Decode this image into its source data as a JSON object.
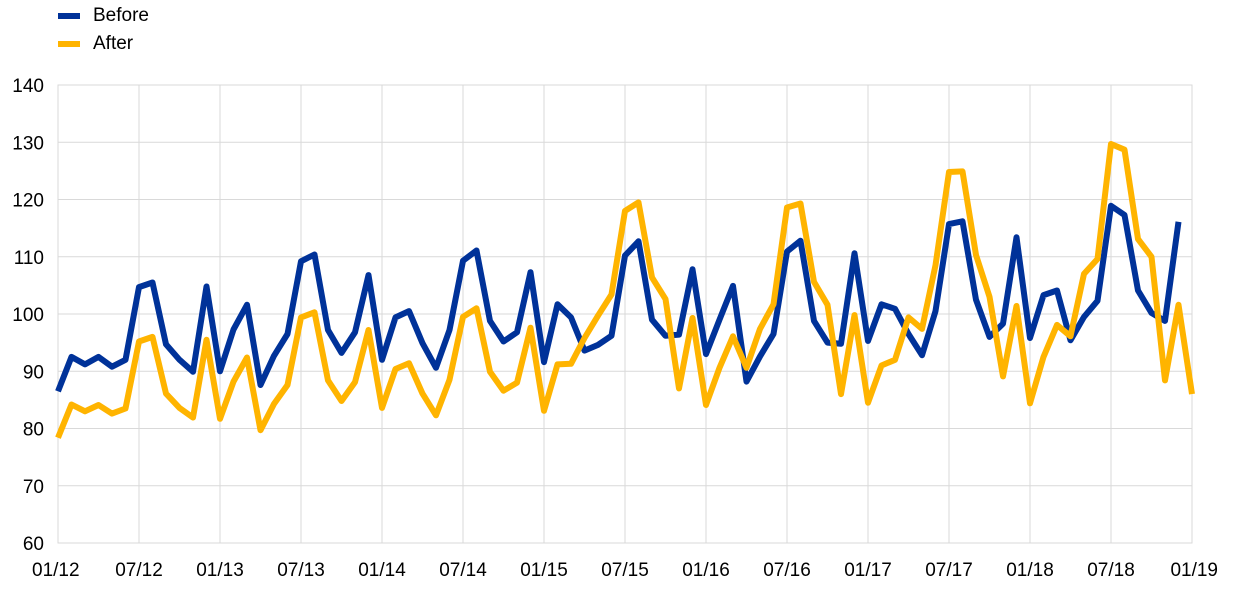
{
  "legend": [
    {
      "label": "Before",
      "color": "#003299"
    },
    {
      "label": "After",
      "color": "#FFB400"
    }
  ],
  "chart_data": {
    "type": "line",
    "title": "",
    "xlabel": "",
    "ylabel": "",
    "ylim": [
      60,
      140
    ],
    "yticks": [
      60,
      70,
      80,
      90,
      100,
      110,
      120,
      130,
      140
    ],
    "grid": true,
    "legend_position": "top-left",
    "x_tick_labels": [
      "01/12",
      "07/12",
      "01/13",
      "07/13",
      "01/14",
      "07/14",
      "01/15",
      "07/15",
      "01/16",
      "07/16",
      "01/17",
      "07/17",
      "01/18",
      "07/18",
      "01/19"
    ],
    "x_start": "01/12",
    "x_end": "01/19",
    "series": [
      {
        "name": "Before",
        "color": "#003299",
        "values": [
          86.5,
          92.5,
          91.2,
          92.5,
          90.8,
          92.0,
          104.7,
          105.5,
          94.7,
          92.0,
          89.9,
          104.8,
          90.0,
          97.3,
          101.6,
          87.6,
          92.7,
          96.5,
          109.2,
          110.4,
          97.2,
          93.2,
          96.8,
          106.8,
          92.0,
          99.4,
          100.5,
          94.9,
          90.6,
          97.2,
          109.3,
          111.1,
          98.8,
          95.2,
          96.8,
          107.3,
          91.6,
          101.7,
          99.4,
          93.6,
          94.6,
          96.2,
          110.2,
          112.7,
          99.0,
          96.2,
          96.4,
          107.8,
          93.0,
          99.0,
          104.9,
          88.2,
          92.6,
          96.5,
          110.9,
          112.8,
          98.8,
          95.0,
          94.8,
          110.6,
          95.3,
          101.7,
          100.9,
          96.5,
          92.8,
          100.5,
          115.7,
          116.2,
          102.5,
          96.0,
          98.3,
          113.4,
          95.8,
          103.3,
          104.1,
          95.4,
          99.5,
          102.3,
          118.9,
          117.3,
          104.1,
          100.2,
          98.8,
          116.1
        ]
      },
      {
        "name": "After",
        "color": "#FFB400",
        "values": [
          78.4,
          84.2,
          83.0,
          84.1,
          82.6,
          83.5,
          95.2,
          96.0,
          86.1,
          83.6,
          81.9,
          95.5,
          81.7,
          88.2,
          92.4,
          79.7,
          84.3,
          87.6,
          99.4,
          100.3,
          88.4,
          84.8,
          88.1,
          97.2,
          83.6,
          90.4,
          91.4,
          86.1,
          82.3,
          88.5,
          99.5,
          101.0,
          89.9,
          86.6,
          88.0,
          97.6,
          83.1,
          91.2,
          91.3,
          95.8,
          99.7,
          103.4,
          118.0,
          119.5,
          106.4,
          102.6,
          87.0,
          99.3,
          84.1,
          90.6,
          96.1,
          90.6,
          97.4,
          101.7,
          118.6,
          119.3,
          105.6,
          101.6,
          86.0,
          99.8,
          84.5,
          91.0,
          92.0,
          99.4,
          97.4,
          108.5,
          124.8,
          124.9,
          110.3,
          103.0,
          89.1,
          101.4,
          84.4,
          92.5,
          98.1,
          96.1,
          107.0,
          109.6,
          129.7,
          128.7,
          113.1,
          110.0,
          88.4,
          101.6,
          86.0
        ]
      }
    ]
  }
}
